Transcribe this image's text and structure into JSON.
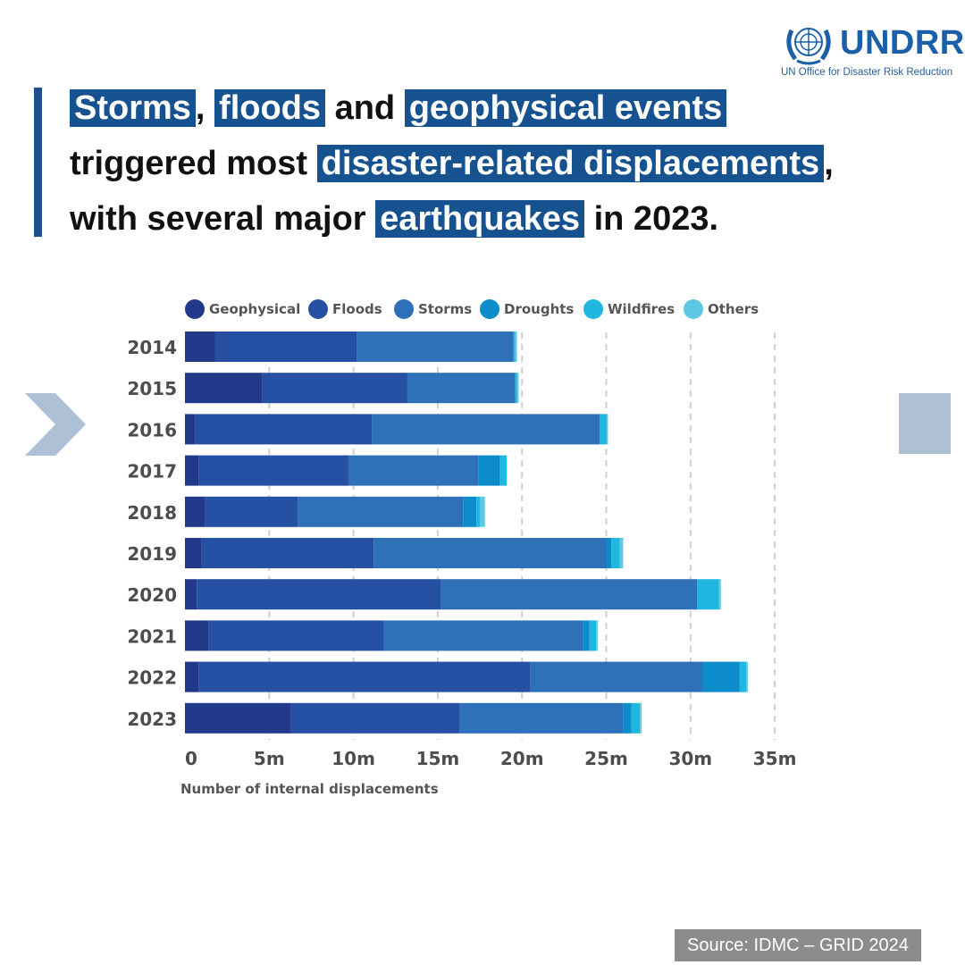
{
  "brand": {
    "name": "UNDRR",
    "subtitle": "UN Office for Disaster Risk Reduction",
    "color": "#1b5fa8"
  },
  "headline": {
    "line1": {
      "hl1": "Storms",
      "t1": ", ",
      "hl2": "floods",
      "t2": " and ",
      "hl3": "geophysical events"
    },
    "line2": {
      "t1": "triggered most ",
      "hl1": "disaster-related displacements",
      "t2": ","
    },
    "line3": {
      "t1": "with several major ",
      "hl1": "earthquakes",
      "t2": " in 2023."
    }
  },
  "navigation": {
    "prev_icon": "chevron-right-icon",
    "next_icon": "square-icon"
  },
  "chart_data": {
    "type": "bar",
    "orientation": "horizontal",
    "stacked": true,
    "title": "",
    "xlabel": "Number of internal displacements",
    "ylabel": "",
    "xlim": [
      0,
      35
    ],
    "xticks": [
      0,
      5,
      10,
      15,
      20,
      25,
      30,
      35
    ],
    "xtick_labels": [
      "0",
      "5m",
      "10m",
      "15m",
      "20m",
      "25m",
      "30m",
      "35m"
    ],
    "grid": "vertical dashed",
    "legend_position": "top",
    "categories": [
      "2014",
      "2015",
      "2016",
      "2017",
      "2018",
      "2019",
      "2020",
      "2021",
      "2022",
      "2023"
    ],
    "series": [
      {
        "name": "Geophysical",
        "color": "#22398a",
        "values": [
          1.8,
          4.6,
          0.6,
          0.8,
          1.2,
          1.0,
          0.7,
          1.4,
          0.8,
          6.3
        ]
      },
      {
        "name": "Floods",
        "color": "#2550a3",
        "values": [
          8.4,
          8.6,
          10.5,
          8.9,
          5.5,
          10.2,
          14.5,
          10.4,
          19.7,
          10.0
        ]
      },
      {
        "name": "Storms",
        "color": "#2e71b8",
        "values": [
          9.3,
          6.4,
          13.5,
          7.7,
          9.8,
          13.8,
          15.2,
          11.8,
          10.2,
          9.7
        ]
      },
      {
        "name": "Droughts",
        "color": "#0d8ccb",
        "values": [
          0,
          0,
          0,
          1.3,
          0.8,
          0.3,
          0,
          0.4,
          2.2,
          0.5
        ]
      },
      {
        "name": "Wildfires",
        "color": "#1fb7e0",
        "values": [
          0.1,
          0.1,
          0.4,
          0.4,
          0.2,
          0.5,
          1.3,
          0.4,
          0.4,
          0.5
        ]
      },
      {
        "name": "Others",
        "color": "#5ec8e2",
        "values": [
          0.1,
          0.1,
          0.1,
          0,
          0.3,
          0.2,
          0.1,
          0.1,
          0.1,
          0.1
        ]
      }
    ]
  },
  "source": "Source: IDMC – GRID 2024"
}
